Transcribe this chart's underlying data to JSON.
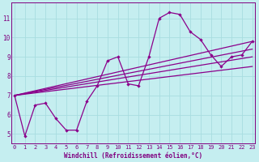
{
  "xlabel": "Windchill (Refroidissement éolien,°C)",
  "x_data": [
    0,
    1,
    2,
    3,
    4,
    5,
    6,
    7,
    8,
    9,
    10,
    11,
    12,
    13,
    14,
    15,
    16,
    17,
    18,
    19,
    20,
    21,
    22,
    23
  ],
  "line1": [
    7.0,
    4.9,
    6.5,
    6.6,
    5.8,
    5.2,
    5.2,
    6.7,
    7.5,
    8.8,
    9.0,
    7.6,
    7.5,
    9.0,
    11.0,
    11.3,
    11.2,
    10.3,
    9.9,
    9.1,
    8.5,
    9.0,
    9.1,
    9.8
  ],
  "trend_lines": [
    {
      "x": [
        0,
        23
      ],
      "y": [
        7.0,
        9.8
      ]
    },
    {
      "x": [
        0,
        23
      ],
      "y": [
        7.0,
        9.0
      ]
    },
    {
      "x": [
        0,
        23
      ],
      "y": [
        7.0,
        8.5
      ]
    },
    {
      "x": [
        0,
        23
      ],
      "y": [
        7.0,
        9.4
      ]
    }
  ],
  "line_color": "#8B008B",
  "bg_color": "#C5EEF0",
  "grid_color": "#A8DDE0",
  "axis_color": "#800080",
  "ylim": [
    4.5,
    11.8
  ],
  "xlim": [
    -0.3,
    23.3
  ],
  "yticks": [
    5,
    6,
    7,
    8,
    9,
    10,
    11
  ],
  "xticks": [
    0,
    1,
    2,
    3,
    4,
    5,
    6,
    7,
    8,
    9,
    10,
    11,
    12,
    13,
    14,
    15,
    16,
    17,
    18,
    19,
    20,
    21,
    22,
    23
  ],
  "tick_fontsize": 5.0,
  "xlabel_fontsize": 5.5,
  "lw": 0.9,
  "ms": 2.2
}
